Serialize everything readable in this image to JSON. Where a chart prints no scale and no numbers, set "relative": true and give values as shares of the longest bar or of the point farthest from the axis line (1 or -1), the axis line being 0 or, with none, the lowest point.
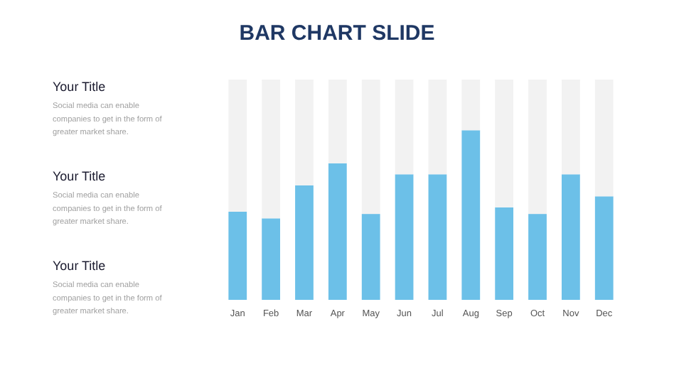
{
  "chart_data": {
    "type": "bar",
    "title": "BAR CHART SLIDE",
    "relative": true,
    "stacked": true,
    "categories": [
      "Jan",
      "Feb",
      "Mar",
      "Apr",
      "May",
      "Jun",
      "Jul",
      "Aug",
      "Sep",
      "Oct",
      "Nov",
      "Dec"
    ],
    "series": [
      {
        "color": "#6cc0e8",
        "values": [
          0.4,
          0.37,
          0.52,
          0.62,
          0.39,
          0.57,
          0.57,
          0.77,
          0.42,
          0.39,
          0.57,
          0.47
        ]
      },
      {
        "color": "#f2f2f2",
        "values": [
          0.6,
          0.63,
          0.48,
          0.38,
          0.61,
          0.43,
          0.43,
          0.23,
          0.58,
          0.61,
          0.43,
          0.53
        ]
      }
    ],
    "annotations": [
      "Your Title",
      "Social media can enable companies to get in the form of greater market share.",
      "Your Title",
      "Social media can enable companies to get in the form of greater market share.",
      "Your Title",
      "Social media can enable companies to get in the form of greater market share."
    ]
  }
}
